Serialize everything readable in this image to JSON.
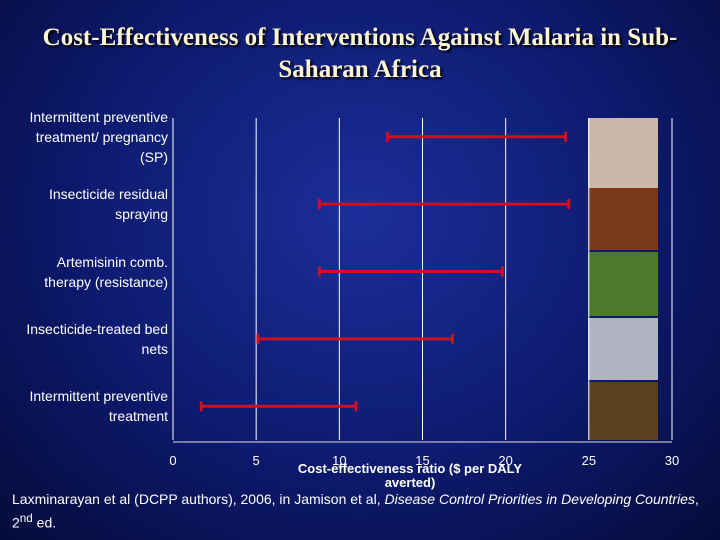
{
  "chart_data": {
    "type": "range",
    "title": "Cost-Effectiveness of Interventions Against Malaria in Sub-Saharan Africa",
    "categories": [
      "Intermittent preventive treatment/ pregnancy (SP)",
      "Insecticide residual spraying",
      "Artemisinin comb. therapy (resistance)",
      "Insecticide-treated bed nets",
      "Intermittent preventive treatment"
    ],
    "low": [
      12.9,
      8.8,
      8.8,
      5.1,
      1.7
    ],
    "high": [
      23.6,
      23.8,
      19.8,
      16.8,
      11.0
    ],
    "color": "#cc1122",
    "x_label": "Cost-effectiveness ratio ($ per DALY averted)",
    "xlim": [
      0,
      30
    ],
    "xticks": [
      0,
      5,
      10,
      15,
      20,
      25,
      30
    ],
    "grid": true
  },
  "footnote": {
    "authors": "Laxminarayan et al (DCPP authors), 2006, in Jamison et al,",
    "book": "Disease Control Priorities in Developing Countries",
    "edition": ", 2",
    "sup": "nd",
    "end": "ed."
  }
}
